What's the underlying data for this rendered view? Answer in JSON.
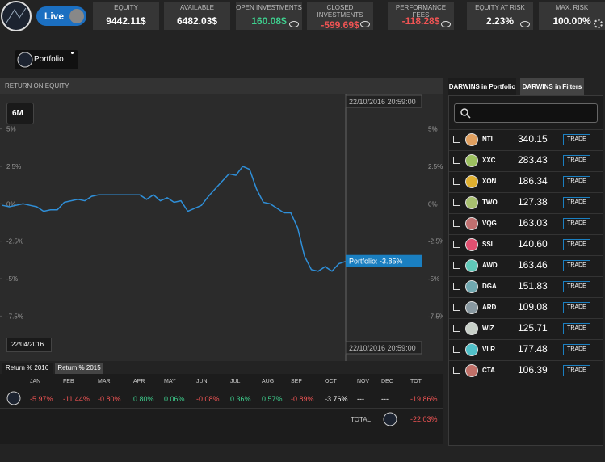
{
  "header": {
    "live": "Live",
    "portfolio": "Portfolio",
    "stats": [
      {
        "label": "EQUITY",
        "value": "9442.11$",
        "color": "#ffffff"
      },
      {
        "label": "AVAILABLE",
        "value": "6482.03$",
        "color": "#ffffff"
      },
      {
        "label": "OPEN INVESTMENTS",
        "value": "160.08$",
        "color": "#3ecf8e"
      },
      {
        "label": "CLOSED INVESTMENTS",
        "value": "-599.69$",
        "color": "#f05454"
      },
      {
        "label": "PERFORMANCE FEES",
        "value": "-118.28$",
        "color": "#f05454"
      },
      {
        "label": "EQUITY AT RISK",
        "value": "2.23%",
        "color": "#ffffff"
      },
      {
        "label": "MAX. RISK",
        "value": "100.00%",
        "color": "#ffffff"
      }
    ]
  },
  "chart_data": {
    "type": "line",
    "title": "RETURN ON EQUITY",
    "range_button": "6M",
    "start_label": "22/04/2016",
    "end_label": "22/10/2016 20:59:00",
    "tooltip": "Portfolio: -3.85%",
    "ylim": [
      -10.5,
      7.3
    ],
    "yticks": [
      {
        "value": 5,
        "label": "5%"
      },
      {
        "value": 2.5,
        "label": "2.5%"
      },
      {
        "value": 0,
        "label": "0%"
      },
      {
        "value": -2.5,
        "label": "-2.5%"
      },
      {
        "value": -5,
        "label": "-5%"
      },
      {
        "value": -7.5,
        "label": "-7.5%"
      }
    ],
    "series": [
      {
        "name": "Portfolio",
        "color": "#2f8fd8",
        "values": [
          -0.1,
          -0.2,
          -0.1,
          0,
          -0.1,
          -0.2,
          -0.5,
          -0.4,
          -0.4,
          0.1,
          0.2,
          0.3,
          0.2,
          0.5,
          0.6,
          0.6,
          0.6,
          0.6,
          0.6,
          0.6,
          0.6,
          0.3,
          0.6,
          0.2,
          0.4,
          0.1,
          0.2,
          -0.5,
          -0.3,
          -0.1,
          0.5,
          1.0,
          1.5,
          2.0,
          1.9,
          2.5,
          2.3,
          1.0,
          0.1,
          0.0,
          -0.3,
          -0.6,
          -0.6,
          -1.6,
          -3.5,
          -4.4,
          -4.5,
          -4.2,
          -4.5,
          -4.0,
          -3.85
        ]
      }
    ]
  },
  "returns": {
    "tabs": [
      "Return % 2016",
      "Return % 2015"
    ],
    "columns": [
      "JAN",
      "FEB",
      "MAR",
      "APR",
      "MAY",
      "JUN",
      "JUL",
      "AUG",
      "SEP",
      "OCT",
      "NOV",
      "DEC",
      "TOT"
    ],
    "row": [
      "-5.97%",
      "-11.44%",
      "-0.80%",
      "0.80%",
      "0.06%",
      "-0.08%",
      "0.36%",
      "0.57%",
      "-0.89%",
      "-3.76%",
      "---",
      "---",
      "-19.86%"
    ],
    "colors": [
      "#f05454",
      "#f05454",
      "#f05454",
      "#3ecf8e",
      "#3ecf8e",
      "#f05454",
      "#3ecf8e",
      "#3ecf8e",
      "#f05454",
      "#ffffff",
      "#ffffff",
      "#ffffff",
      "#f05454"
    ],
    "total_label": "TOTAL",
    "total": "-22.03%"
  },
  "darwins": {
    "tabs": [
      "DARWINS in Portfolio",
      "DARWINS in Filters"
    ],
    "button": "TRADE",
    "rows": [
      {
        "name": "NTI",
        "value": "340.15",
        "color": "#e0a060"
      },
      {
        "name": "XXC",
        "value": "283.43",
        "color": "#9cc060"
      },
      {
        "name": "XON",
        "value": "186.34",
        "color": "#e0b030"
      },
      {
        "name": "TWO",
        "value": "127.38",
        "color": "#a8c070"
      },
      {
        "name": "VQG",
        "value": "163.03",
        "color": "#c07070"
      },
      {
        "name": "SSL",
        "value": "140.60",
        "color": "#e05070"
      },
      {
        "name": "AWD",
        "value": "163.46",
        "color": "#60c8b8"
      },
      {
        "name": "DGA",
        "value": "151.83",
        "color": "#70a8b0"
      },
      {
        "name": "ARD",
        "value": "109.08",
        "color": "#8898a0"
      },
      {
        "name": "WIZ",
        "value": "125.71",
        "color": "#c8d0c8"
      },
      {
        "name": "VLR",
        "value": "177.48",
        "color": "#50c0c8"
      },
      {
        "name": "CTA",
        "value": "106.39",
        "color": "#c07068"
      }
    ]
  }
}
